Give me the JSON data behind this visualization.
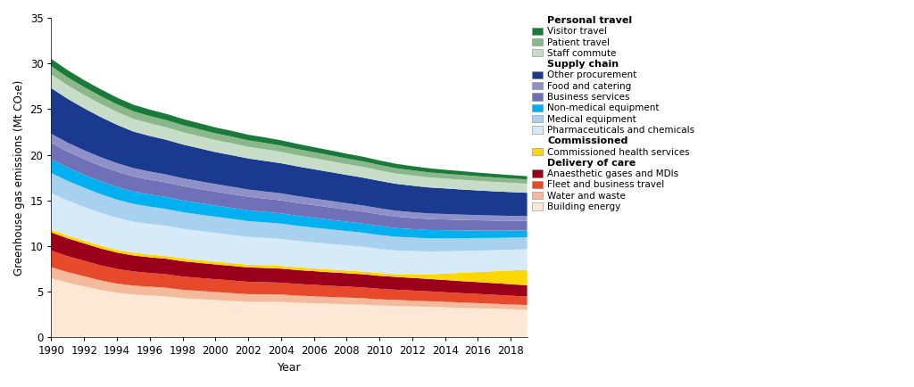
{
  "years": [
    1990,
    1991,
    1992,
    1993,
    1994,
    1995,
    1996,
    1997,
    1998,
    1999,
    2000,
    2001,
    2002,
    2003,
    2004,
    2005,
    2006,
    2007,
    2008,
    2009,
    2010,
    2011,
    2012,
    2013,
    2014,
    2015,
    2016,
    2017,
    2018,
    2019
  ],
  "series": {
    "Building energy": [
      6.5,
      6.0,
      5.6,
      5.2,
      4.9,
      4.7,
      4.6,
      4.5,
      4.3,
      4.2,
      4.1,
      4.0,
      3.9,
      3.9,
      3.9,
      3.8,
      3.75,
      3.7,
      3.65,
      3.6,
      3.5,
      3.45,
      3.4,
      3.35,
      3.3,
      3.25,
      3.2,
      3.15,
      3.1,
      3.05
    ],
    "Water and waste": [
      1.2,
      1.15,
      1.1,
      1.05,
      1.0,
      0.98,
      0.96,
      0.94,
      0.92,
      0.9,
      0.88,
      0.86,
      0.84,
      0.82,
      0.8,
      0.78,
      0.76,
      0.74,
      0.72,
      0.7,
      0.68,
      0.66,
      0.64,
      0.62,
      0.6,
      0.58,
      0.56,
      0.54,
      0.52,
      0.5
    ],
    "Fleet and business travel": [
      1.8,
      1.75,
      1.7,
      1.65,
      1.6,
      1.55,
      1.5,
      1.48,
      1.45,
      1.42,
      1.4,
      1.38,
      1.35,
      1.33,
      1.3,
      1.28,
      1.25,
      1.22,
      1.2,
      1.18,
      1.15,
      1.12,
      1.1,
      1.08,
      1.05,
      1.02,
      1.0,
      0.98,
      0.95,
      0.93
    ],
    "Anaesthetic gases and MDIs": [
      2.0,
      1.95,
      1.9,
      1.85,
      1.8,
      1.75,
      1.72,
      1.7,
      1.68,
      1.65,
      1.62,
      1.6,
      1.58,
      1.56,
      1.54,
      1.52,
      1.5,
      1.48,
      1.46,
      1.44,
      1.42,
      1.4,
      1.38,
      1.36,
      1.34,
      1.32,
      1.3,
      1.28,
      1.26,
      1.24
    ],
    "Commissioned health services": [
      0.3,
      0.3,
      0.3,
      0.3,
      0.3,
      0.3,
      0.3,
      0.3,
      0.3,
      0.3,
      0.3,
      0.3,
      0.3,
      0.3,
      0.3,
      0.3,
      0.3,
      0.3,
      0.3,
      0.3,
      0.3,
      0.3,
      0.4,
      0.5,
      0.7,
      0.9,
      1.1,
      1.3,
      1.5,
      1.7
    ],
    "Pharmaceuticals and chemicals": [
      4.0,
      3.85,
      3.7,
      3.6,
      3.5,
      3.4,
      3.35,
      3.3,
      3.25,
      3.2,
      3.15,
      3.1,
      3.05,
      3.0,
      2.95,
      2.9,
      2.85,
      2.8,
      2.75,
      2.7,
      2.65,
      2.6,
      2.55,
      2.5,
      2.45,
      2.4,
      2.35,
      2.3,
      2.28,
      2.25
    ],
    "Medical equipment": [
      2.2,
      2.15,
      2.1,
      2.05,
      2.0,
      1.95,
      1.9,
      1.85,
      1.82,
      1.8,
      1.78,
      1.75,
      1.72,
      1.7,
      1.68,
      1.65,
      1.62,
      1.6,
      1.58,
      1.55,
      1.52,
      1.5,
      1.48,
      1.45,
      1.42,
      1.4,
      1.38,
      1.35,
      1.32,
      1.3
    ],
    "Non-medical equipment": [
      1.5,
      1.45,
      1.42,
      1.4,
      1.38,
      1.35,
      1.32,
      1.3,
      1.28,
      1.25,
      1.22,
      1.2,
      1.18,
      1.15,
      1.12,
      1.1,
      1.08,
      1.05,
      1.02,
      1.0,
      0.98,
      0.95,
      0.92,
      0.9,
      0.88,
      0.85,
      0.82,
      0.8,
      0.78,
      0.75
    ],
    "Business services": [
      1.8,
      1.75,
      1.72,
      1.7,
      1.68,
      1.65,
      1.62,
      1.6,
      1.58,
      1.55,
      1.52,
      1.5,
      1.48,
      1.45,
      1.42,
      1.4,
      1.38,
      1.35,
      1.32,
      1.3,
      1.28,
      1.25,
      1.22,
      1.2,
      1.18,
      1.15,
      1.12,
      1.1,
      1.08,
      1.05
    ],
    "Food and catering": [
      1.0,
      0.98,
      0.96,
      0.95,
      0.93,
      0.92,
      0.9,
      0.88,
      0.86,
      0.85,
      0.83,
      0.82,
      0.8,
      0.78,
      0.77,
      0.75,
      0.73,
      0.72,
      0.7,
      0.68,
      0.67,
      0.65,
      0.63,
      0.62,
      0.6,
      0.58,
      0.57,
      0.55,
      0.53,
      0.52
    ],
    "Other procurement": [
      5.0,
      4.8,
      4.6,
      4.4,
      4.2,
      4.0,
      3.9,
      3.8,
      3.7,
      3.6,
      3.5,
      3.45,
      3.4,
      3.35,
      3.3,
      3.25,
      3.2,
      3.15,
      3.1,
      3.05,
      3.0,
      2.95,
      2.9,
      2.85,
      2.8,
      2.75,
      2.7,
      2.65,
      2.6,
      2.55
    ],
    "Staff commute": [
      1.5,
      1.48,
      1.46,
      1.44,
      1.42,
      1.4,
      1.38,
      1.36,
      1.35,
      1.33,
      1.32,
      1.3,
      1.28,
      1.27,
      1.25,
      1.23,
      1.22,
      1.2,
      1.18,
      1.17,
      1.15,
      1.13,
      1.12,
      1.1,
      1.08,
      1.07,
      1.05,
      1.03,
      1.02,
      1.0
    ],
    "Patient travel": [
      0.9,
      0.88,
      0.86,
      0.85,
      0.83,
      0.82,
      0.8,
      0.79,
      0.77,
      0.76,
      0.74,
      0.73,
      0.71,
      0.7,
      0.68,
      0.67,
      0.65,
      0.64,
      0.62,
      0.61,
      0.59,
      0.58,
      0.56,
      0.55,
      0.53,
      0.52,
      0.5,
      0.49,
      0.47,
      0.46
    ],
    "Visitor travel": [
      0.8,
      0.78,
      0.76,
      0.75,
      0.73,
      0.72,
      0.7,
      0.69,
      0.67,
      0.66,
      0.64,
      0.63,
      0.61,
      0.6,
      0.58,
      0.57,
      0.55,
      0.54,
      0.52,
      0.51,
      0.49,
      0.48,
      0.46,
      0.45,
      0.43,
      0.42,
      0.4,
      0.39,
      0.37,
      0.36
    ]
  },
  "colors": {
    "Building energy": "#fce8d5",
    "Water and waste": "#f5b99b",
    "Fleet and business travel": "#e8492a",
    "Anaesthetic gases and MDIs": "#9b001a",
    "Commissioned health services": "#ffd700",
    "Pharmaceuticals and chemicals": "#d6eaf8",
    "Medical equipment": "#a8d1f0",
    "Non-medical equipment": "#00b0f0",
    "Business services": "#7070b8",
    "Food and catering": "#9090c8",
    "Other procurement": "#1a3a8f",
    "Staff commute": "#c8ddc8",
    "Patient travel": "#8ab88a",
    "Visitor travel": "#1a7a3a"
  },
  "ylabel": "Greenhouse gas emissions (Mt CO₂e)",
  "xlabel": "Year",
  "ylim": [
    0,
    35
  ],
  "yticks": [
    0,
    5,
    10,
    15,
    20,
    25,
    30,
    35
  ],
  "xticks": [
    1990,
    1992,
    1994,
    1996,
    1998,
    2000,
    2002,
    2004,
    2006,
    2008,
    2010,
    2012,
    2014,
    2016,
    2018
  ],
  "legend_categories": {
    "Personal travel": [
      "Visitor travel",
      "Patient travel",
      "Staff commute"
    ],
    "Supply chain": [
      "Other procurement",
      "Food and catering",
      "Business services",
      "Non-medical equipment",
      "Medical equipment",
      "Pharmaceuticals and chemicals"
    ],
    "Commissioned": [
      "Commissioned health services"
    ],
    "Delivery of care": [
      "Anaesthetic gases and MDIs",
      "Fleet and business travel",
      "Water and waste",
      "Building energy"
    ]
  }
}
